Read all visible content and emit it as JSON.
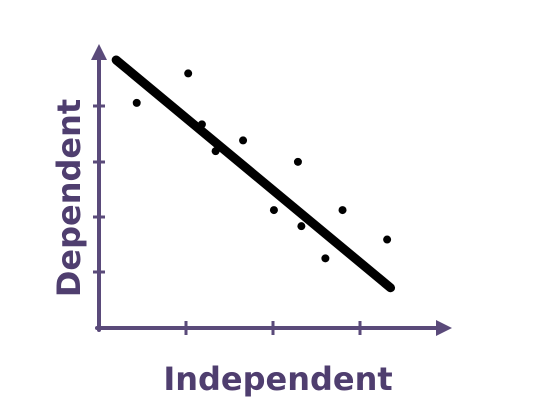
{
  "chart_data": {
    "type": "scatter",
    "title": "",
    "xlabel": "Independent",
    "ylabel": "Dependent",
    "xlim": [
      0,
      10
    ],
    "ylim": [
      0,
      10
    ],
    "grid": false,
    "legend": "none",
    "series": [
      {
        "x": [
          1.1,
          2.6,
          3.0,
          3.4,
          4.2,
          5.1,
          5.8,
          5.9,
          6.6,
          7.1,
          8.4
        ],
        "y": [
          8.4,
          9.5,
          7.6,
          6.6,
          7.0,
          4.4,
          6.2,
          3.8,
          2.6,
          4.4,
          3.3
        ]
      }
    ],
    "trendline": {
      "x": [
        0.5,
        8.5
      ],
      "y": [
        10.0,
        1.5
      ]
    },
    "colors": {
      "axis": "#5a4a7a",
      "label": "#4f3e6f",
      "points": "#000000",
      "trendline": "#000000"
    }
  }
}
